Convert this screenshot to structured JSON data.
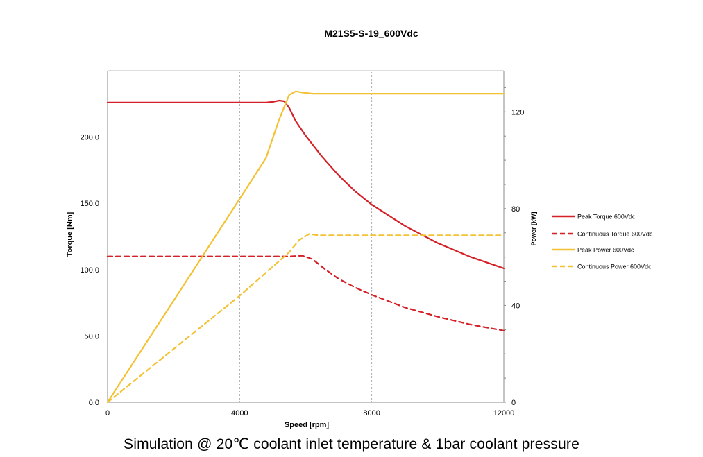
{
  "chart_data": {
    "type": "line",
    "title": "M21S5-S-19_600Vdc",
    "xlabel": "Speed [rpm]",
    "ylabel_left": "Torque [Nm]",
    "ylabel_right": "Power [kW]",
    "xlim": [
      0,
      12000
    ],
    "ylim_left": [
      0,
      250
    ],
    "ylim_right": [
      0,
      137
    ],
    "x_ticks": [
      0,
      4000,
      8000,
      12000
    ],
    "x_tick_labels": [
      "0",
      "4000",
      "8000",
      "12000"
    ],
    "y_left_ticks": [
      0,
      50,
      100,
      150,
      200
    ],
    "y_left_tick_labels": [
      "0.0",
      "50.0",
      "100.0",
      "150.0",
      "200.0"
    ],
    "y_right_ticks": [
      0,
      40,
      80,
      120
    ],
    "y_right_tick_labels": [
      "0",
      "40",
      "80",
      "120"
    ],
    "grid": "vertical",
    "legend_position": "right",
    "series": [
      {
        "name": "Peak Torque 600Vdc",
        "axis": "left",
        "color": "#d42127",
        "dash": false,
        "points": [
          [
            0,
            226
          ],
          [
            4800,
            226
          ],
          [
            5000,
            226.5
          ],
          [
            5200,
            227.5
          ],
          [
            5350,
            227
          ],
          [
            5500,
            222
          ],
          [
            5700,
            212
          ],
          [
            6000,
            201
          ],
          [
            6500,
            185
          ],
          [
            7000,
            171
          ],
          [
            7500,
            159
          ],
          [
            8000,
            149
          ],
          [
            9000,
            133
          ],
          [
            10000,
            120
          ],
          [
            11000,
            109.5
          ],
          [
            12000,
            101
          ]
        ]
      },
      {
        "name": "Continuous Torque 600Vdc",
        "axis": "left",
        "color": "#d42127",
        "dash": true,
        "points": [
          [
            0,
            110
          ],
          [
            5500,
            110
          ],
          [
            5900,
            110.5
          ],
          [
            6200,
            108
          ],
          [
            6600,
            100
          ],
          [
            7000,
            93
          ],
          [
            7500,
            86.5
          ],
          [
            8000,
            81
          ],
          [
            9000,
            71.5
          ],
          [
            10000,
            64.5
          ],
          [
            11000,
            58.5
          ],
          [
            12000,
            54
          ]
        ]
      },
      {
        "name": "Peak Power 600Vdc",
        "axis": "right",
        "color": "#f3c233",
        "dash": false,
        "points": [
          [
            0,
            0
          ],
          [
            2000,
            42
          ],
          [
            4000,
            84
          ],
          [
            4800,
            101
          ],
          [
            5200,
            117
          ],
          [
            5500,
            127
          ],
          [
            5700,
            128.5
          ],
          [
            5900,
            128
          ],
          [
            6200,
            127.5
          ],
          [
            12000,
            127.5
          ]
        ]
      },
      {
        "name": "Continuous Power 600Vdc",
        "axis": "right",
        "color": "#f3c233",
        "dash": true,
        "points": [
          [
            0,
            0
          ],
          [
            4000,
            44
          ],
          [
            5500,
            62
          ],
          [
            5800,
            67
          ],
          [
            6100,
            69.5
          ],
          [
            6400,
            69
          ],
          [
            12000,
            69
          ]
        ]
      }
    ]
  },
  "caption": "Simulation @ 20℃ coolant inlet temperature & 1bar coolant pressure"
}
